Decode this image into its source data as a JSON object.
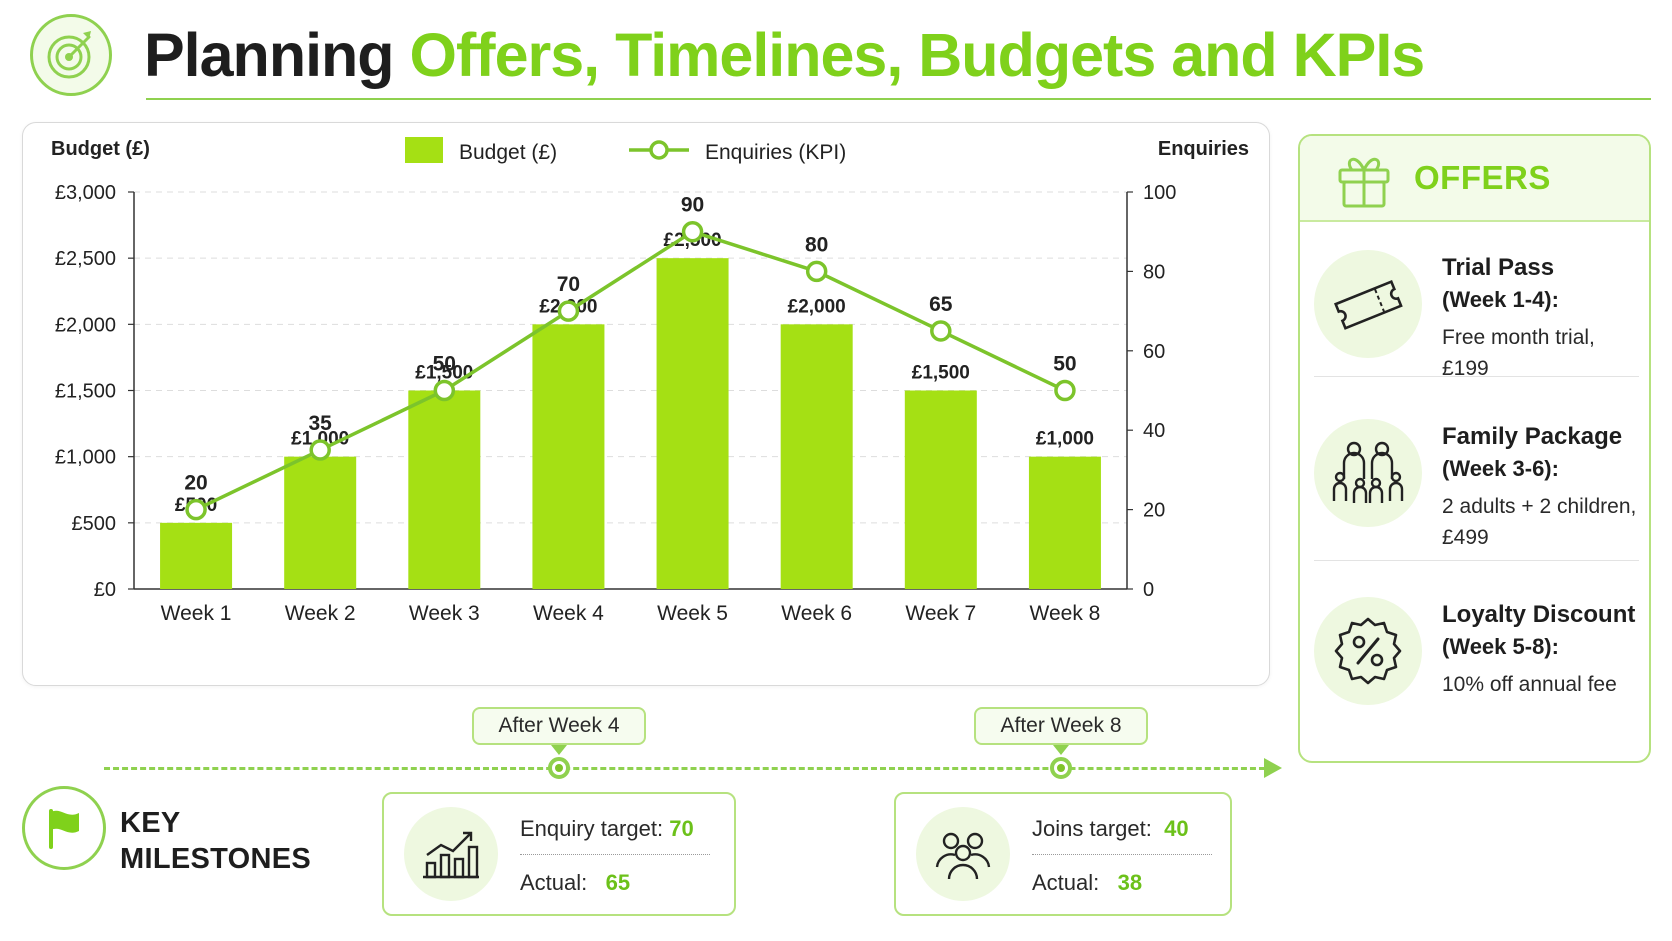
{
  "header": {
    "title_dark": "Planning",
    "title_green": "Offers, Timelines, Budgets and KPIs",
    "icon": "target-icon"
  },
  "colors": {
    "accent": "#7fd11b",
    "bar": "#a5e014",
    "line": "#7cc42b",
    "dark_text": "#1e1e1e"
  },
  "chart_data": {
    "type": "bar",
    "categories": [
      "Week 1",
      "Week 2",
      "Week 3",
      "Week 4",
      "Week 5",
      "Week 6",
      "Week 7",
      "Week 8"
    ],
    "series": [
      {
        "name": "Budget (£)",
        "type": "bar",
        "axis": "left",
        "values": [
          500,
          1000,
          1500,
          2000,
          2500,
          2000,
          1500,
          1000
        ],
        "labels": [
          "£500",
          "£1,000",
          "£1,500",
          "£2,000",
          "£2,500",
          "£2,000",
          "£1,500",
          "£1,000"
        ]
      },
      {
        "name": "Enquiries (KPI)",
        "type": "line",
        "axis": "right",
        "values": [
          20,
          35,
          50,
          70,
          90,
          80,
          65,
          50
        ],
        "labels": [
          "20",
          "35",
          "50",
          "70",
          "90",
          "80",
          "65",
          "50"
        ]
      }
    ],
    "ylabel": "Budget (£)",
    "y2label": "Enquiries",
    "ylim": [
      0,
      3000
    ],
    "y2lim": [
      0,
      100
    ],
    "yticks": [
      "£0",
      "£500",
      "£1,000",
      "£1,500",
      "£2,000",
      "£2,500",
      "£3,000"
    ],
    "y2ticks": [
      "0",
      "20",
      "40",
      "60",
      "80",
      "100"
    ],
    "grid": true,
    "legend": "top-center"
  },
  "offers": {
    "title": "OFFERS",
    "icon": "gift-icon",
    "items": [
      {
        "title": "Trial Pass",
        "period": "(Week 1-4):",
        "desc": "Free month trial, £199",
        "icon": "ticket-icon"
      },
      {
        "title": "Family Package",
        "period": "(Week 3-6):",
        "desc": "2 adults + 2 children, £499",
        "icon": "family-icon"
      },
      {
        "title": "Loyalty Discount",
        "period": "(Week 5-8):",
        "desc": "10% off annual fee",
        "icon": "discount-icon"
      }
    ]
  },
  "milestones": {
    "label_line1": "KEY",
    "label_line2": "MILESTONES",
    "icon": "flag-icon",
    "items": [
      {
        "tag": "After Week 4",
        "target_label": "Enquiry target:",
        "target": "70",
        "actual_label": "Actual:",
        "actual": "65",
        "icon": "growth-chart-icon"
      },
      {
        "tag": "After Week 8",
        "target_label": "Joins target:",
        "target": "40",
        "actual_label": "Actual:",
        "actual": "38",
        "icon": "group-icon"
      }
    ]
  }
}
